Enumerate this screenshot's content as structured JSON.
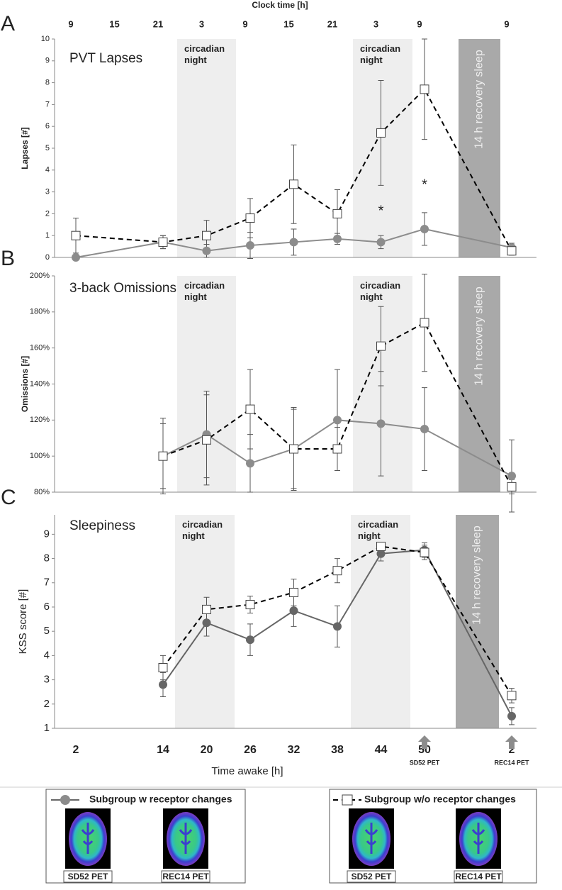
{
  "chart_data": [
    {
      "type": "line",
      "title": "PVT Lapses",
      "panel_label": "A",
      "ylabel": "Lapses [#]",
      "clock_axis_label": "Clock time [h]",
      "clock_times": [
        "9",
        "15",
        "21",
        "3",
        "9",
        "15",
        "21",
        "3",
        "9",
        "9"
      ],
      "ylim": [
        0,
        10
      ],
      "yticks": [
        0,
        1,
        2,
        3,
        4,
        5,
        6,
        7,
        8,
        9,
        10
      ],
      "bands": [
        "circadian night",
        "circadian night",
        "14 h recovery sleep"
      ],
      "annotations": [
        {
          "text": "*",
          "x": 6,
          "y": 2.1
        },
        {
          "text": "*",
          "x": 7,
          "y": 3.3
        }
      ],
      "series": [
        {
          "name": "Subgroup w receptor changes",
          "color": "#8c8c8c",
          "marker": "circle",
          "line_style": "solid",
          "values": [
            0.0,
            0.7,
            0.3,
            0.55,
            0.7,
            0.85,
            0.7,
            1.3,
            0.45
          ],
          "errors": [
            0.1,
            0.3,
            0.3,
            0.6,
            0.6,
            0.25,
            0.3,
            0.75,
            0.2
          ]
        },
        {
          "name": "Subgroup w/o receptor changes",
          "color": "#000000",
          "marker": "square",
          "line_style": "dashed",
          "values": [
            1.0,
            0.7,
            1.0,
            1.8,
            3.35,
            2.0,
            5.7,
            7.7,
            0.3
          ],
          "errors": [
            0.8,
            0.3,
            0.7,
            0.9,
            1.8,
            1.1,
            2.4,
            2.3,
            0.2
          ]
        }
      ]
    },
    {
      "type": "line",
      "title": "3-back Omissions",
      "panel_label": "B",
      "ylabel": "Omissions [#]",
      "ylim": [
        80,
        200
      ],
      "yticks": [
        {
          "value": 80,
          "label": "80%"
        },
        {
          "value": 100,
          "label": "100%"
        },
        {
          "value": 120,
          "label": "120%"
        },
        {
          "value": 140,
          "label": "140%"
        },
        {
          "value": 160,
          "label": "160%"
        },
        {
          "value": 180,
          "label": "180%"
        },
        {
          "value": 200,
          "label": "200%"
        }
      ],
      "bands": [
        "circadian night",
        "circadian night",
        "14 h recovery sleep"
      ],
      "series": [
        {
          "name": "Subgroup w receptor changes",
          "color": "#8c8c8c",
          "marker": "circle",
          "line_style": "solid",
          "values": [
            null,
            100,
            112,
            96,
            104,
            120,
            118,
            115,
            89
          ],
          "errors": [
            null,
            18,
            24,
            16,
            23,
            28,
            29,
            23,
            20
          ]
        },
        {
          "name": "Subgroup w/o receptor changes",
          "color": "#000000",
          "marker": "square",
          "line_style": "dashed",
          "values": [
            null,
            100,
            109,
            126,
            104,
            104,
            161,
            174,
            83
          ],
          "errors": [
            null,
            21,
            25,
            22,
            22,
            12,
            22,
            27,
            4
          ]
        }
      ]
    },
    {
      "type": "line",
      "title": "Sleepiness",
      "panel_label": "C",
      "ylabel": "KSS score  [#]",
      "xlabel": "Time awake [h]",
      "categories": [
        "2",
        "14",
        "20",
        "26",
        "32",
        "38",
        "44",
        "50",
        "2"
      ],
      "ylim": [
        1,
        9.8
      ],
      "yticks": [
        1,
        2,
        3,
        4,
        5,
        6,
        7,
        8,
        9
      ],
      "bands": [
        "circadian night",
        "circadian night",
        "14 h recovery sleep"
      ],
      "series": [
        {
          "name": "Subgroup w receptor changes",
          "color": "#666666",
          "marker": "circle",
          "line_style": "solid",
          "values": [
            null,
            2.8,
            5.35,
            4.65,
            5.85,
            5.2,
            8.2,
            8.35,
            1.5
          ],
          "errors": [
            null,
            0.5,
            0.55,
            0.65,
            0.65,
            0.85,
            0.3,
            0.3,
            0.35
          ]
        },
        {
          "name": "Subgroup w/o receptor changes",
          "color": "#000000",
          "marker": "square",
          "line_style": "dashed",
          "values": [
            null,
            3.5,
            5.9,
            6.1,
            6.6,
            7.5,
            8.5,
            8.25,
            2.35
          ],
          "errors": [
            null,
            0.5,
            0.5,
            0.35,
            0.55,
            0.5,
            0.1,
            0.3,
            0.3
          ]
        }
      ]
    }
  ],
  "pet_images": [
    "SD52 PET",
    "REC14 PET"
  ]
}
